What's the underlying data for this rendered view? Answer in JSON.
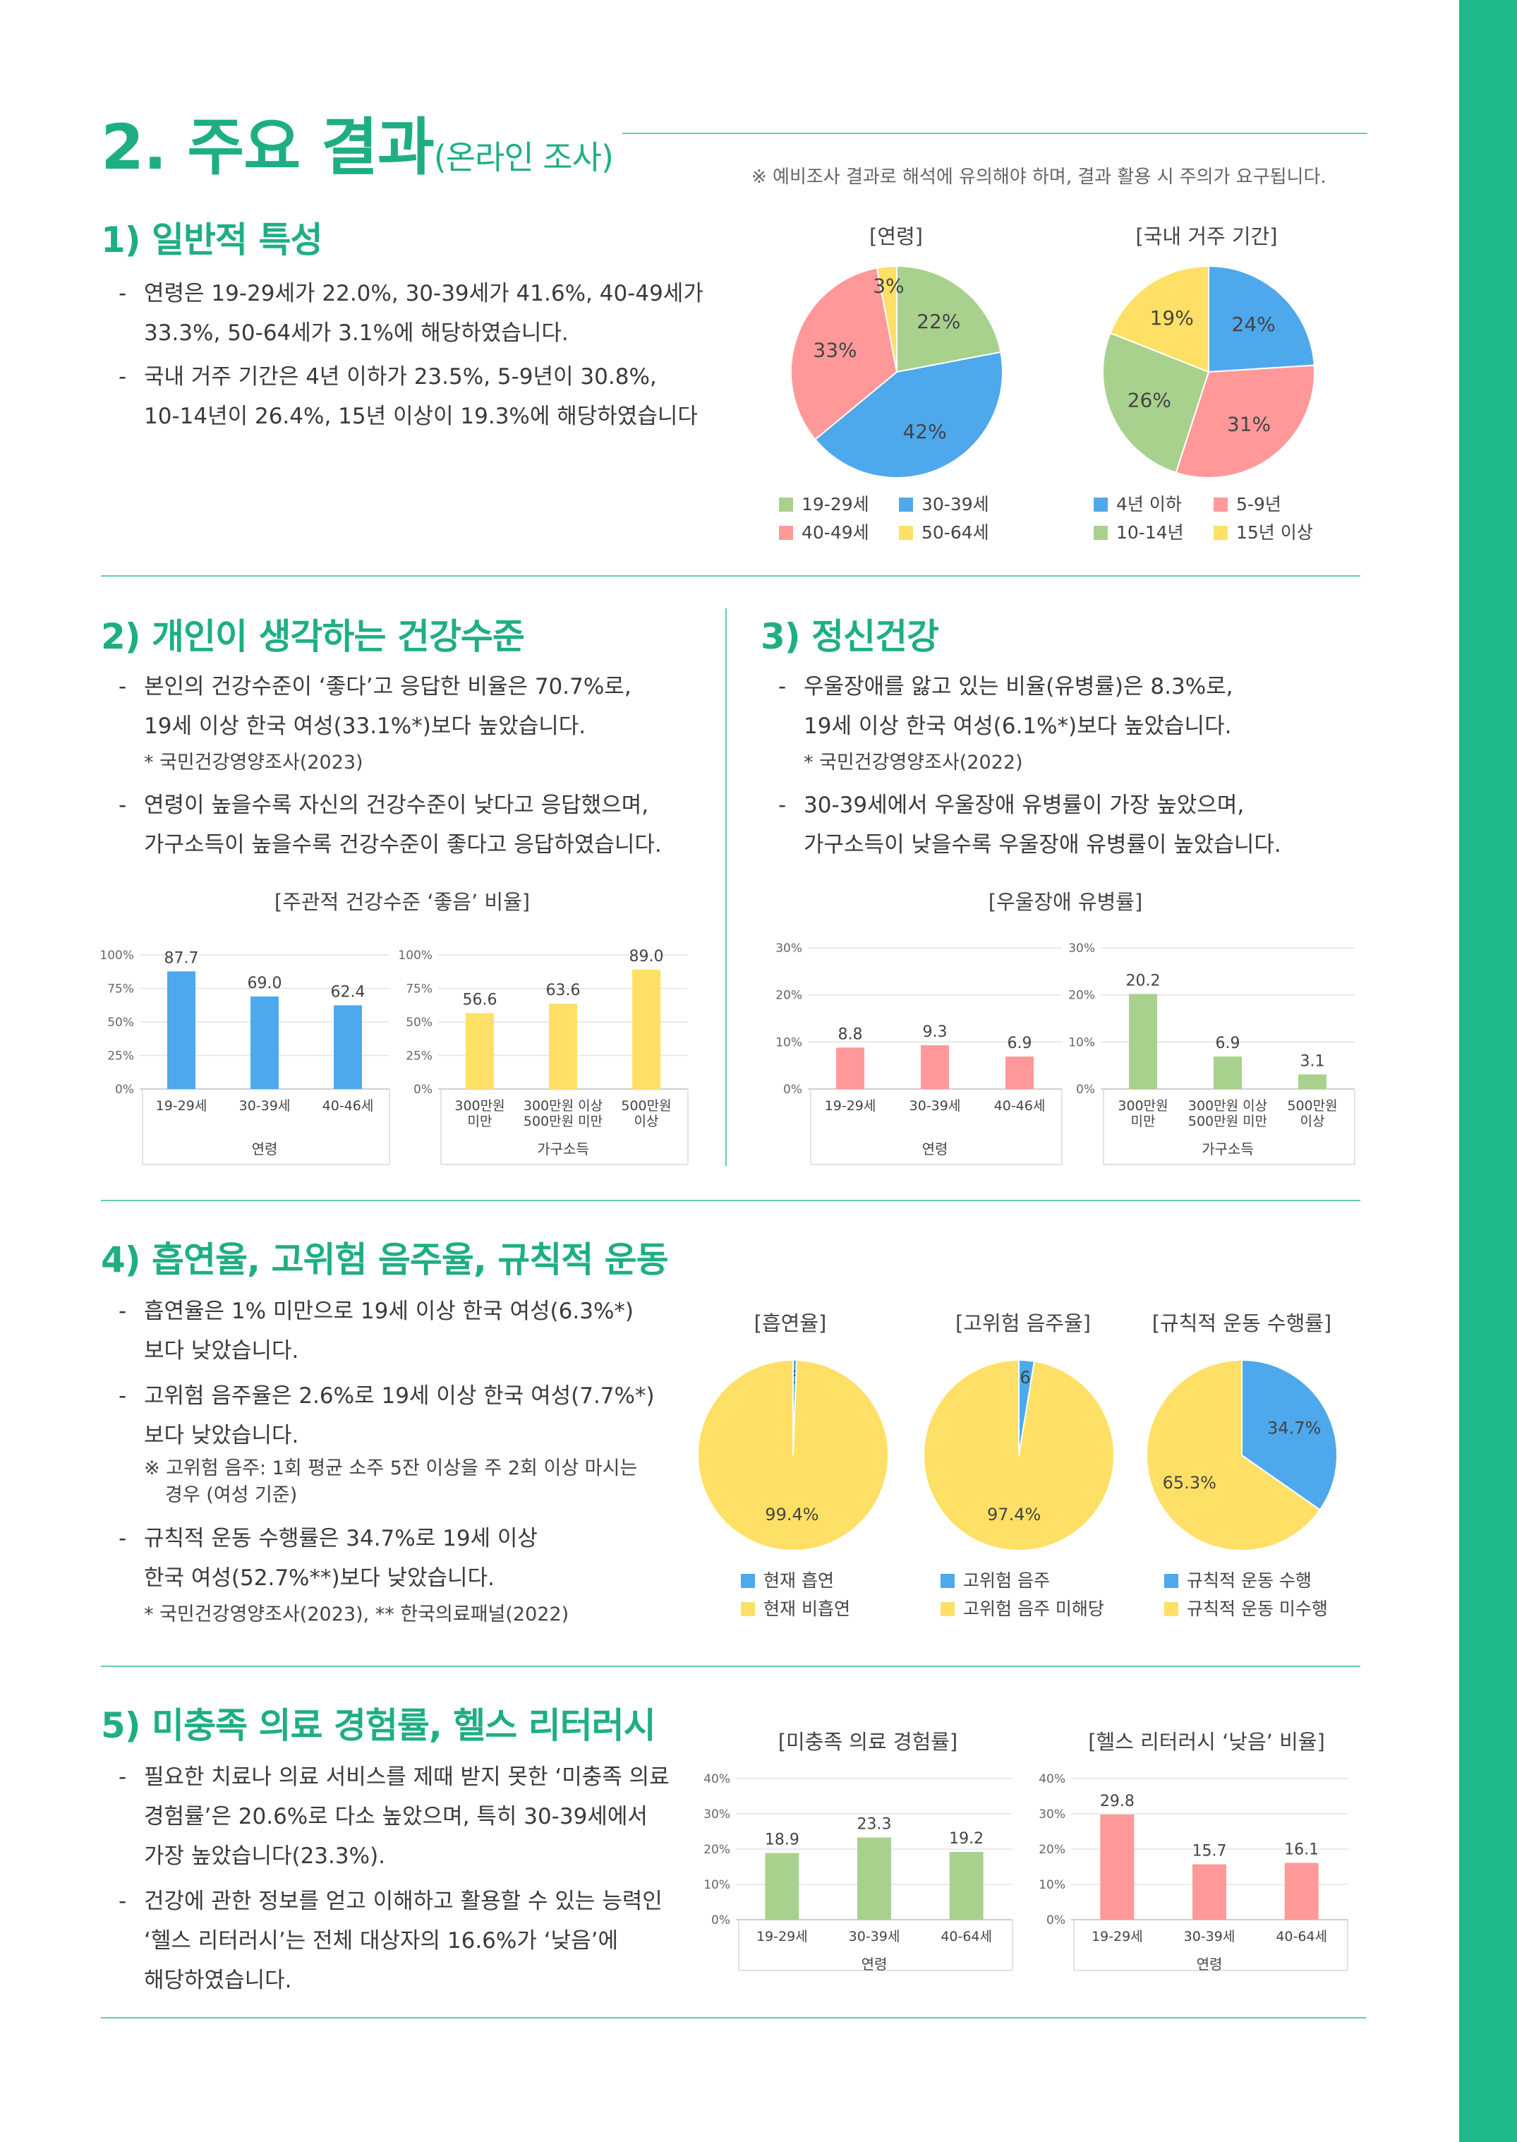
{
  "header": {
    "title_main": "2. 주요 결과",
    "title_sub": "(온라인 조사)",
    "note": "※ 예비조사 결과로 해석에 유의해야 하며, 결과 활용 시 주의가 요구됩니다."
  },
  "sec1": {
    "title": "1) 일반적 특성",
    "bullets": [
      "연령은 19-29세가 22.0%, 30-39세가 41.6%, 40-49세가 33.3%, 50-64세가 3.1%에 해당하였습니다.",
      "국내 거주 기간은 4년 이하가 23.5%, 5-9년이 30.8%, 10-14년이 26.4%, 15년 이상이 19.3%에 해당하였습니다"
    ],
    "bullet1_lines": [
      "연령은 19-29세가 22.0%, 30-39세가 41.6%, 40-49세가",
      "33.3%, 50-64세가 3.1%에 해당하였습니다."
    ],
    "bullet2_lines": [
      "국내 거주 기간은 4년 이하가 23.5%, 5-9년이 30.8%,",
      "10-14년이 26.4%, 15년 이상이 19.3%에 해당하였습니다"
    ]
  },
  "sec2": {
    "title": "2) 개인이 생각하는 건강수준",
    "b1_lines": [
      "본인의 건강수준이 ‘좋다’고 응답한 비율은 70.7%로,",
      "19세 이상 한국 여성(33.1%*)보다 높았습니다."
    ],
    "b1_foot": "* 국민건강영양조사(2023)",
    "b2_lines": [
      "연령이 높을수록 자신의 건강수준이 낮다고 응답했으며,",
      "가구소득이 높을수록 건강수준이 좋다고 응답하였습니다."
    ]
  },
  "sec3": {
    "title": "3) 정신건강",
    "b1_lines": [
      "우울장애를 앓고 있는 비율(유병률)은 8.3%로,",
      "19세 이상 한국 여성(6.1%*)보다 높았습니다."
    ],
    "b1_foot": "* 국민건강영양조사(2022)",
    "b2_lines": [
      "30-39세에서 우울장애 유병률이 가장 높았으며,",
      "가구소득이 낮을수록 우울장애 유병률이 높았습니다."
    ]
  },
  "sec4": {
    "title": "4) 흡연율, 고위험 음주율, 규칙적 운동",
    "b1_lines": [
      "흡연율은 1% 미만으로 19세 이상 한국 여성(6.3%*)",
      "보다 낮았습니다."
    ],
    "b2_lines": [
      "고위험 음주율은 2.6%로 19세 이상 한국 여성(7.7%*)",
      "보다 낮았습니다."
    ],
    "b2_foot_lines": [
      "※ 고위험 음주: 1회 평균 소주 5잔 이상을 주 2회 이상 마시는",
      "경우 (여성 기준)"
    ],
    "b3_lines": [
      "규칙적 운동 수행률은 34.7%로 19세 이상",
      "한국 여성(52.7%**)보다 낮았습니다."
    ],
    "b3_foot": "* 국민건강영양조사(2023), **  한국의료패널(2022)"
  },
  "sec5": {
    "title": "5) 미충족 의료 경험률, 헬스 리터러시",
    "b1_lines": [
      "필요한 치료나 의료 서비스를 제때 받지 못한 ‘미충족 의료",
      "경험률’은 20.6%로 다소 높았으며, 특히 30-39세에서",
      "가장 높았습니다(23.3%)."
    ],
    "b2_lines": [
      "건강에 관한 정보를 얻고 이해하고 활용할 수 있는 능력인",
      "‘헬스 리터러시’는 전체 대상자의 16.6%가 ‘낮음’에",
      "해당하였습니다."
    ]
  },
  "colors": {
    "green": "#a9d18e",
    "blue": "#4ea8ec",
    "pink": "#ff9999",
    "yellow": "#ffe066",
    "accent": "#1fae84"
  },
  "chart_data": [
    {
      "id": "age-pie",
      "type": "pie",
      "title": "[연령]",
      "categories": [
        "19-29세",
        "30-39세",
        "40-49세",
        "50-64세"
      ],
      "values": [
        22,
        42,
        33,
        3
      ],
      "labels": [
        "22%",
        "42%",
        "33%",
        "3%"
      ],
      "colors": [
        "#a9d18e",
        "#4ea8ec",
        "#ff9999",
        "#ffe066"
      ],
      "legend": "bottom"
    },
    {
      "id": "residence-pie",
      "type": "pie",
      "title": "[국내 거주 기간]",
      "categories": [
        "4년 이하",
        "5-9년",
        "10-14년",
        "15년 이상"
      ],
      "values": [
        24,
        31,
        26,
        19
      ],
      "labels": [
        "24%",
        "31%",
        "26%",
        "19%"
      ],
      "colors": [
        "#4ea8ec",
        "#ff9999",
        "#a9d18e",
        "#ffe066"
      ],
      "legend": "bottom"
    },
    {
      "id": "health-age-bar",
      "type": "bar",
      "title": "[주관적 건강수준 ‘좋음’ 비율]",
      "categories": [
        "19-29세",
        "30-39세",
        "40-46세"
      ],
      "values": [
        87.7,
        69.0,
        62.4
      ],
      "value_labels": [
        "87.7",
        "69.0",
        "62.4"
      ],
      "xlabel": "연령",
      "ylim": [
        0,
        100
      ],
      "yticks": [
        "0%",
        "25%",
        "50%",
        "75%",
        "100%"
      ],
      "color": "#4ea8ec"
    },
    {
      "id": "health-income-bar",
      "type": "bar",
      "categories": [
        "300만원 미만",
        "300만원 이상 500만원 미만",
        "500만원 이상"
      ],
      "category_lines": [
        [
          "300만원",
          "미만"
        ],
        [
          "300만원 이상",
          "500만원 미만"
        ],
        [
          "500만원",
          "이상"
        ]
      ],
      "values": [
        56.6,
        63.6,
        89.0
      ],
      "value_labels": [
        "56.6",
        "63.6",
        "89.0"
      ],
      "xlabel": "가구소득",
      "ylim": [
        0,
        100
      ],
      "yticks": [
        "0%",
        "25%",
        "50%",
        "75%",
        "100%"
      ],
      "color": "#ffe066"
    },
    {
      "id": "depression-age-bar",
      "type": "bar",
      "title": "[우울장애 유병률]",
      "categories": [
        "19-29세",
        "30-39세",
        "40-46세"
      ],
      "values": [
        8.8,
        9.3,
        6.9
      ],
      "value_labels": [
        "8.8",
        "9.3",
        "6.9"
      ],
      "xlabel": "연령",
      "ylim": [
        0,
        30
      ],
      "yticks": [
        "0%",
        "10%",
        "20%",
        "30%"
      ],
      "color": "#ff9999"
    },
    {
      "id": "depression-income-bar",
      "type": "bar",
      "categories": [
        "300만원 미만",
        "300만원 이상 500만원 미만",
        "500만원 이상"
      ],
      "category_lines": [
        [
          "300만원",
          "미만"
        ],
        [
          "300만원 이상",
          "500만원 미만"
        ],
        [
          "500만원",
          "이상"
        ]
      ],
      "values": [
        20.2,
        6.9,
        3.1
      ],
      "value_labels": [
        "20.2",
        "6.9",
        "3.1"
      ],
      "xlabel": "가구소득",
      "ylim": [
        0,
        30
      ],
      "yticks": [
        "0%",
        "10%",
        "20%",
        "30%"
      ],
      "color": "#a9d18e"
    },
    {
      "id": "smoking-pie",
      "type": "pie",
      "title": "[흡연율]",
      "categories": [
        "현재 흡연",
        "현재 비흡연"
      ],
      "values": [
        0.6,
        99.4
      ],
      "labels": [
        "0.6%",
        "99.4%"
      ],
      "colors": [
        "#4ea8ec",
        "#ffe066"
      ],
      "legend": "bottom"
    },
    {
      "id": "drinking-pie",
      "type": "pie",
      "title": "[고위험 음주율]",
      "categories": [
        "고위험 음주",
        "고위험 음주 미해당"
      ],
      "values": [
        2.6,
        97.4
      ],
      "labels": [
        "2.6%",
        "97.4%"
      ],
      "colors": [
        "#4ea8ec",
        "#ffe066"
      ],
      "legend": "bottom"
    },
    {
      "id": "exercise-pie",
      "type": "pie",
      "title": "[규칙적 운동 수행률]",
      "categories": [
        "규칙적 운동 수행",
        "규칙적 운동 미수행"
      ],
      "values": [
        34.7,
        65.3
      ],
      "labels": [
        "34.7%",
        "65.3%"
      ],
      "colors": [
        "#4ea8ec",
        "#ffe066"
      ],
      "legend": "bottom"
    },
    {
      "id": "unmet-bar",
      "type": "bar",
      "title": "[미충족 의료 경험률]",
      "categories": [
        "19-29세",
        "30-39세",
        "40-64세"
      ],
      "values": [
        18.9,
        23.3,
        19.2
      ],
      "value_labels": [
        "18.9",
        "23.3",
        "19.2"
      ],
      "xlabel": "연령",
      "ylim": [
        0,
        40
      ],
      "yticks": [
        "0%",
        "10%",
        "20%",
        "30%",
        "40%"
      ],
      "color": "#a9d18e"
    },
    {
      "id": "literacy-bar",
      "type": "bar",
      "title": "[헬스 리터러시 ‘낮음’ 비율]",
      "categories": [
        "19-29세",
        "30-39세",
        "40-64세"
      ],
      "values": [
        29.8,
        15.7,
        16.1
      ],
      "value_labels": [
        "29.8",
        "15.7",
        "16.1"
      ],
      "xlabel": "연령",
      "ylim": [
        0,
        40
      ],
      "yticks": [
        "0%",
        "10%",
        "20%",
        "30%",
        "40%"
      ],
      "color": "#ff9999"
    }
  ]
}
